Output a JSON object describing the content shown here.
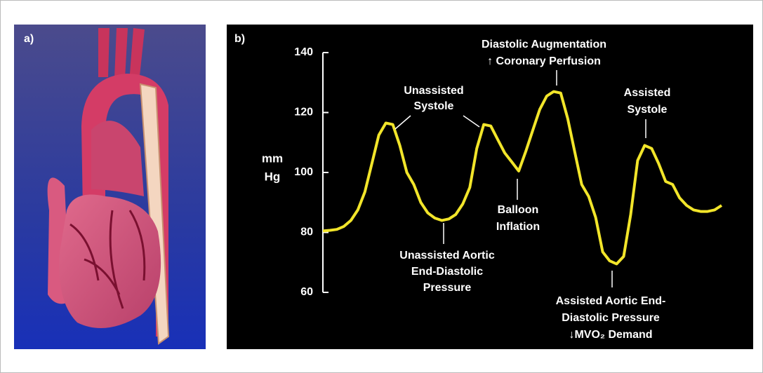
{
  "panel_labels": [
    "a)",
    "b)"
  ],
  "chart_data": {
    "type": "line",
    "y_label": [
      "mm",
      "Hg"
    ],
    "ylim": [
      60,
      140
    ],
    "yticks": [
      60,
      80,
      100,
      120,
      140
    ],
    "color": "#f2e52a",
    "values": [
      80.5,
      80.7,
      81,
      82,
      84,
      87.5,
      93.5,
      103,
      112.5,
      116.5,
      116,
      109,
      100,
      96,
      90,
      86.5,
      84.8,
      84,
      84.5,
      86,
      89.5,
      95,
      108,
      116,
      115.5,
      111,
      106.5,
      103.5,
      100.5,
      107,
      114,
      121,
      125.5,
      127,
      126.5,
      118,
      107,
      96,
      92,
      85,
      73.5,
      70.5,
      69.5,
      72,
      86,
      104,
      109,
      108,
      103,
      97,
      96,
      91.5,
      89,
      87.5,
      87,
      87,
      87.5,
      89
    ],
    "annotations": [
      {
        "lines": [
          "Unassisted",
          "Systole"
        ]
      },
      {
        "lines": [
          "Diastolic Augmentation",
          "↑ Coronary Perfusion"
        ]
      },
      {
        "lines": [
          "Assisted",
          "Systole"
        ]
      },
      {
        "lines": [
          "Balloon",
          "Inflation"
        ]
      },
      {
        "lines": [
          "Unassisted Aortic",
          "End-Diastolic",
          "Pressure"
        ]
      },
      {
        "lines": [
          "Assisted Aortic End-",
          "Diastolic Pressure",
          "↓MVO₂ Demand"
        ]
      }
    ]
  }
}
